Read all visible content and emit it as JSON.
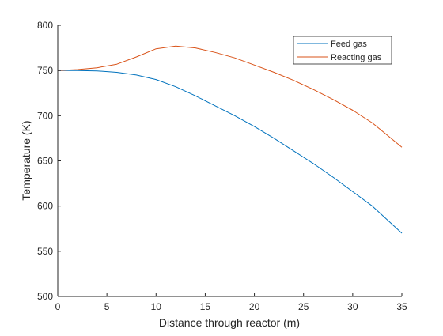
{
  "chart_data": {
    "type": "line",
    "title": "",
    "xlabel": "Distance through reactor (m)",
    "ylabel": "Temperature (K)",
    "xlim": [
      0,
      35
    ],
    "ylim": [
      500,
      800
    ],
    "xticks": [
      0,
      5,
      10,
      15,
      20,
      25,
      30,
      35
    ],
    "yticks": [
      500,
      550,
      600,
      650,
      700,
      750,
      800
    ],
    "grid": false,
    "legend_position": "top-right",
    "series": [
      {
        "name": "Feed gas",
        "color": "#0072BD",
        "x": [
          0,
          2,
          4,
          6,
          8,
          10,
          12,
          14,
          16,
          18,
          20,
          22,
          24,
          26,
          28,
          30,
          32,
          35
        ],
        "y": [
          750,
          750,
          749.5,
          748,
          745,
          740,
          732,
          722,
          711,
          700,
          688,
          675,
          661,
          647,
          632,
          616,
          600,
          570
        ]
      },
      {
        "name": "Reacting gas",
        "color": "#D95319",
        "x": [
          0,
          2,
          4,
          6,
          8,
          10,
          12,
          14,
          16,
          18,
          20,
          22,
          24,
          26,
          28,
          30,
          32,
          35
        ],
        "y": [
          750,
          751,
          753,
          757,
          765,
          774,
          777,
          775,
          770,
          764,
          756,
          748,
          739,
          729,
          718,
          706,
          692,
          665
        ]
      }
    ]
  }
}
